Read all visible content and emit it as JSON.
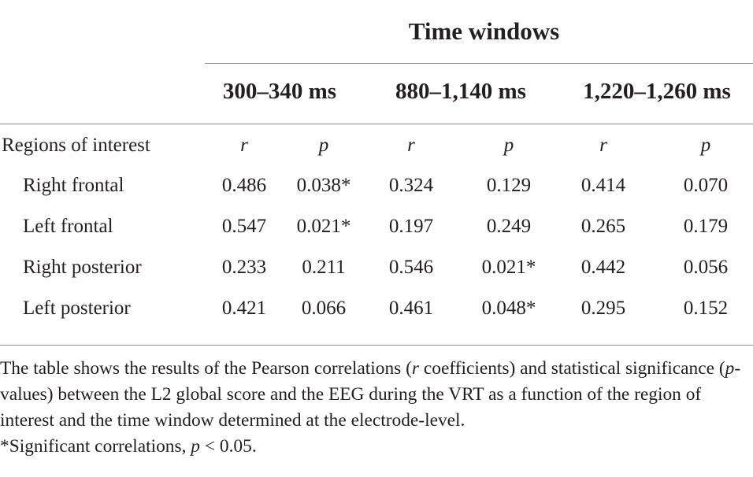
{
  "table": {
    "group_header": "Time windows",
    "time_windows": [
      "300–340 ms",
      "880–1,140 ms",
      "1,220–1,260 ms"
    ],
    "row_header_label": "Regions of interest",
    "sub_headers": [
      "r",
      "p",
      "r",
      "p",
      "r",
      "p"
    ],
    "rows": [
      {
        "region": "Right frontal",
        "values": [
          "0.486",
          "0.038*",
          "0.324",
          "0.129",
          "0.414",
          "0.070"
        ]
      },
      {
        "region": "Left frontal",
        "values": [
          "0.547",
          "0.021*",
          "0.197",
          "0.249",
          "0.265",
          "0.179"
        ]
      },
      {
        "region": "Right posterior",
        "values": [
          "0.233",
          "0.211",
          "0.546",
          "0.021*",
          "0.442",
          "0.056"
        ]
      },
      {
        "region": "Left posterior",
        "values": [
          "0.421",
          "0.066",
          "0.461",
          "0.048*",
          "0.295",
          "0.152"
        ]
      }
    ]
  },
  "footnote": {
    "part1": "The table shows the results of the Pearson correlations (",
    "r_symbol": "r",
    "part2": " coefficients) and statistical significance (",
    "p_symbol": "p",
    "part3": "-values) between the L2 global score and the EEG during the VRT as a function of the region of interest and the time window determined at the electrode-level.",
    "significance_prefix": "*Significant correlations, ",
    "significance_p": "p",
    "significance_suffix": " < 0.05."
  }
}
